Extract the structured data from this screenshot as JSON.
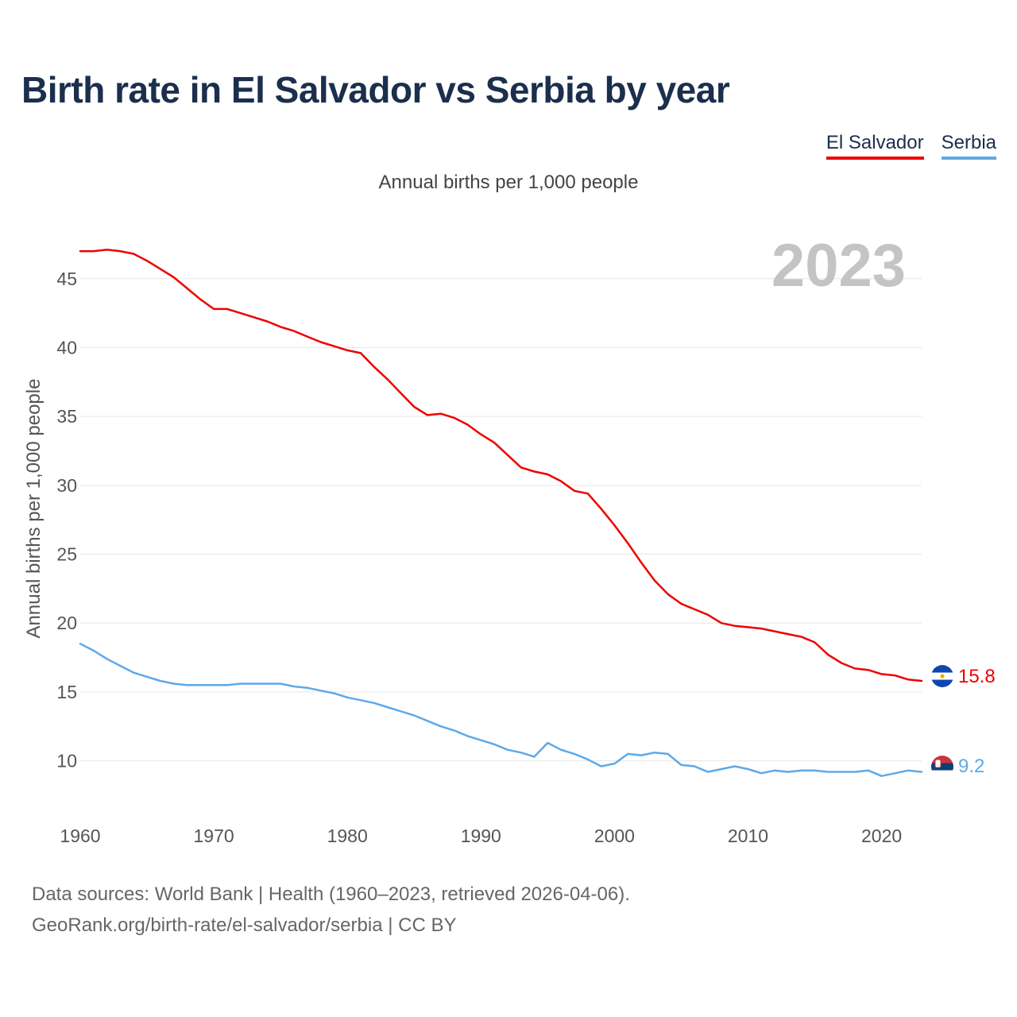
{
  "title": "Birth rate in El Salvador vs Serbia by year",
  "legend": {
    "items": [
      {
        "label": "El Salvador",
        "color": "#ee0000"
      },
      {
        "label": "Serbia",
        "color": "#5ea9e8"
      }
    ]
  },
  "subtitle": "Annual births per 1,000 people",
  "footer": {
    "line1": "Data sources: World Bank | Health (1960–2023, retrieved 2026-04-06).",
    "line2": "GeoRank.org/birth-rate/el-salvador/serbia | CC BY"
  },
  "chart_data": {
    "type": "line",
    "title": "Birth rate in El Salvador vs Serbia by year",
    "subtitle": "Annual births per 1,000 people",
    "xlabel": "",
    "ylabel": "Annual births per 1,000 people",
    "year_label": "2023",
    "xlim": [
      1960,
      2023
    ],
    "ylim": [
      6.4,
      49.6
    ],
    "yticks": [
      10,
      15,
      20,
      25,
      30,
      35,
      40,
      45
    ],
    "xticks": [
      1960,
      1970,
      1980,
      1990,
      2000,
      2010,
      2020
    ],
    "grid": true,
    "legend_position": "top-right",
    "series": [
      {
        "name": "El Salvador",
        "color": "#ee0000",
        "end_label": "15.8",
        "icon": "el-salvador-flag-icon",
        "x": [
          1960,
          1961,
          1962,
          1963,
          1964,
          1965,
          1966,
          1967,
          1968,
          1969,
          1970,
          1971,
          1972,
          1973,
          1974,
          1975,
          1976,
          1977,
          1978,
          1979,
          1980,
          1981,
          1982,
          1983,
          1984,
          1985,
          1986,
          1987,
          1988,
          1989,
          1990,
          1991,
          1992,
          1993,
          1994,
          1995,
          1996,
          1997,
          1998,
          1999,
          2000,
          2001,
          2002,
          2003,
          2004,
          2005,
          2006,
          2007,
          2008,
          2009,
          2010,
          2011,
          2012,
          2013,
          2014,
          2015,
          2016,
          2017,
          2018,
          2019,
          2020,
          2021,
          2022,
          2023
        ],
        "values": [
          47.0,
          47.0,
          47.1,
          47.0,
          46.8,
          46.3,
          45.7,
          45.1,
          44.3,
          43.5,
          42.8,
          42.8,
          42.5,
          42.2,
          41.9,
          41.5,
          41.2,
          40.8,
          40.4,
          40.1,
          39.8,
          39.6,
          38.6,
          37.7,
          36.7,
          35.7,
          35.1,
          35.2,
          34.9,
          34.4,
          33.7,
          33.1,
          32.2,
          31.3,
          31.0,
          30.8,
          30.3,
          29.6,
          29.4,
          28.3,
          27.1,
          25.8,
          24.4,
          23.1,
          22.1,
          21.4,
          21.0,
          20.6,
          20.0,
          19.8,
          19.7,
          19.6,
          19.4,
          19.2,
          19.0,
          18.6,
          17.7,
          17.1,
          16.7,
          16.6,
          16.3,
          16.2,
          15.9,
          15.8
        ]
      },
      {
        "name": "Serbia",
        "color": "#5ea9e8",
        "end_label": "9.2",
        "icon": "serbia-flag-icon",
        "x": [
          1960,
          1961,
          1962,
          1963,
          1964,
          1965,
          1966,
          1967,
          1968,
          1969,
          1970,
          1971,
          1972,
          1973,
          1974,
          1975,
          1976,
          1977,
          1978,
          1979,
          1980,
          1981,
          1982,
          1983,
          1984,
          1985,
          1986,
          1987,
          1988,
          1989,
          1990,
          1991,
          1992,
          1993,
          1994,
          1995,
          1996,
          1997,
          1998,
          1999,
          2000,
          2001,
          2002,
          2003,
          2004,
          2005,
          2006,
          2007,
          2008,
          2009,
          2010,
          2011,
          2012,
          2013,
          2014,
          2015,
          2016,
          2017,
          2018,
          2019,
          2020,
          2021,
          2022,
          2023
        ],
        "values": [
          18.5,
          18.0,
          17.4,
          16.9,
          16.4,
          16.1,
          15.8,
          15.6,
          15.5,
          15.5,
          15.5,
          15.5,
          15.6,
          15.6,
          15.6,
          15.6,
          15.4,
          15.3,
          15.1,
          14.9,
          14.6,
          14.4,
          14.2,
          13.9,
          13.6,
          13.3,
          12.9,
          12.5,
          12.2,
          11.8,
          11.5,
          11.2,
          10.8,
          10.6,
          10.3,
          11.3,
          10.8,
          10.5,
          10.1,
          9.6,
          9.8,
          10.5,
          10.4,
          10.6,
          10.5,
          9.7,
          9.6,
          9.2,
          9.4,
          9.6,
          9.4,
          9.1,
          9.3,
          9.2,
          9.3,
          9.3,
          9.2,
          9.2,
          9.2,
          9.3,
          8.9,
          9.1,
          9.3,
          9.2
        ]
      }
    ]
  }
}
